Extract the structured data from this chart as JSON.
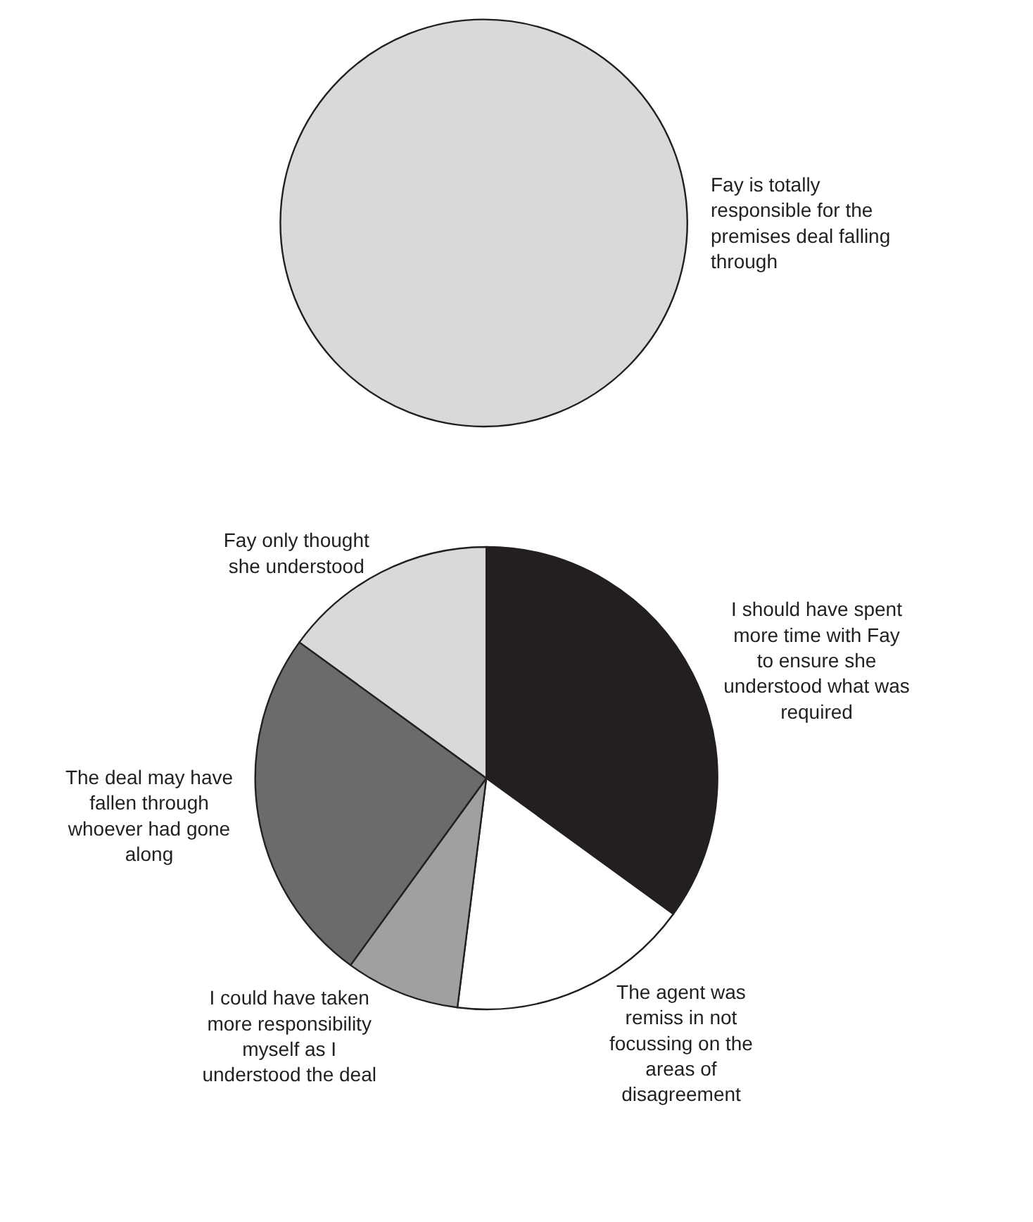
{
  "chart_data": [
    {
      "type": "pie",
      "categories": [
        "Fay is totally responsible for the premises deal falling through"
      ],
      "values": [
        100
      ],
      "colors": [
        "#d9d9d9"
      ]
    },
    {
      "type": "pie",
      "categories": [
        "I should have spent more time with Fay to ensure she understood what was required",
        "The agent was remiss in not focussing on the areas of disagreement",
        "I could have taken more responsibility myself as I understood the deal",
        "The deal may have fallen through whoever had gone along",
        "Fay only thought she understood"
      ],
      "values": [
        35,
        17,
        8,
        25,
        15
      ],
      "colors": [
        "#231f20",
        "#ffffff",
        "#a0a0a0",
        "#6b6b6b",
        "#d9d9d9"
      ]
    }
  ]
}
